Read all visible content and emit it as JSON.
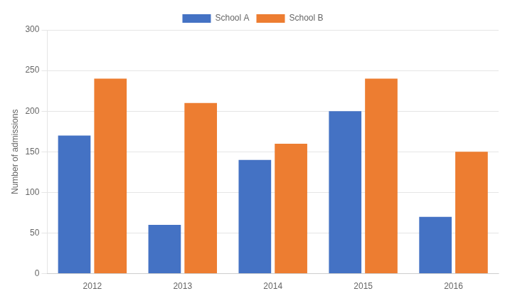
{
  "chart_data": {
    "type": "bar",
    "categories": [
      "2012",
      "2013",
      "2014",
      "2015",
      "2016"
    ],
    "series": [
      {
        "name": "School A",
        "color": "#4472C4",
        "values": [
          170,
          60,
          140,
          200,
          70
        ]
      },
      {
        "name": "School B",
        "color": "#ED7D31",
        "values": [
          240,
          210,
          160,
          240,
          150
        ]
      }
    ],
    "ylabel": "Number of admissions",
    "ylim": [
      0,
      300
    ],
    "yticks": [
      0,
      50,
      100,
      150,
      200,
      250,
      300
    ],
    "grid": true,
    "legend": "top"
  }
}
